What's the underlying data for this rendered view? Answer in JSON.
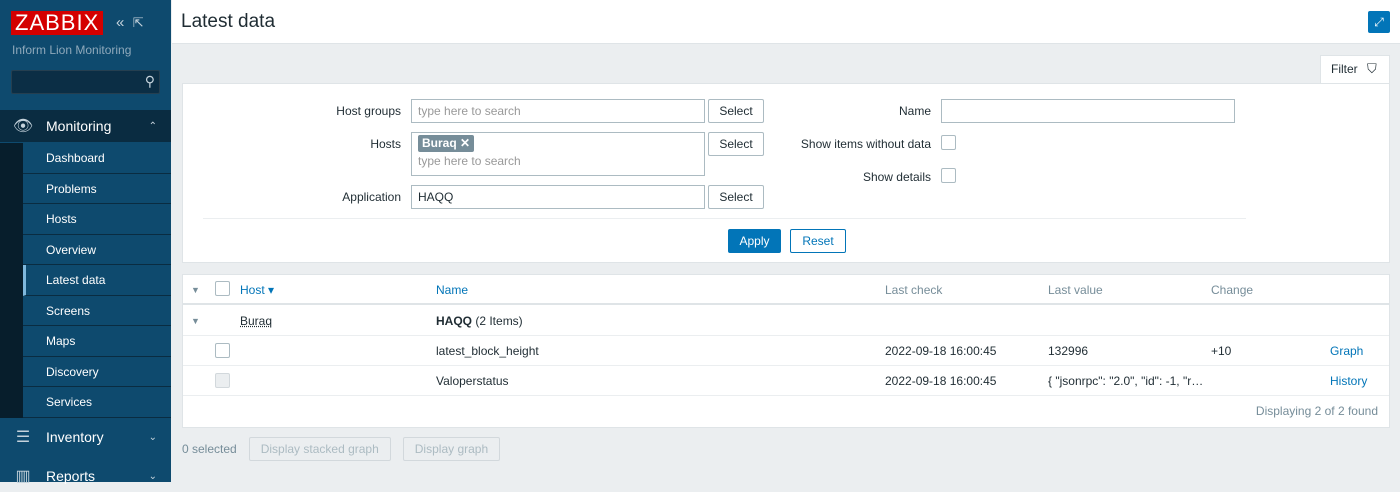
{
  "sidebar": {
    "logo": "ZABBIX",
    "subtitle": "Inform Lion Monitoring",
    "collapse_icon": "«",
    "kiosk_icon": "⇱",
    "search_icon": "🔍",
    "monitoring": {
      "label": "Monitoring",
      "items": [
        "Dashboard",
        "Problems",
        "Hosts",
        "Overview",
        "Latest data",
        "Screens",
        "Maps",
        "Discovery",
        "Services"
      ],
      "active": "Latest data"
    },
    "inventory": "Inventory",
    "reports": "Reports"
  },
  "header": {
    "title": "Latest data",
    "fullscreen_icon": "⤢"
  },
  "filter": {
    "tab_label": "Filter",
    "filter_icon": "⛉",
    "host_groups_label": "Host groups",
    "host_groups_placeholder": "type here to search",
    "hosts_label": "Hosts",
    "hosts_tag": "Buraq",
    "hosts_placeholder": "type here to search",
    "application_label": "Application",
    "application_value": "HAQQ",
    "select_label": "Select",
    "name_label": "Name",
    "name_value": "",
    "show_without_data_label": "Show items without data",
    "show_details_label": "Show details",
    "apply_label": "Apply",
    "reset_label": "Reset"
  },
  "table": {
    "columns": {
      "host": "Host ▾",
      "name": "Name",
      "last_check": "Last check",
      "last_value": "Last value",
      "change": "Change"
    },
    "group": {
      "host": "Buraq",
      "app": "HAQQ",
      "count": "(2 Items)"
    },
    "rows": [
      {
        "name": "latest_block_height",
        "last_check": "2022-09-18 16:00:45",
        "last_value": "132996",
        "change": "+10",
        "action": "Graph"
      },
      {
        "name": "Valoperstatus",
        "last_check": "2022-09-18 16:00:45",
        "last_value": "{ \"jsonrpc\": \"2.0\", \"id\": -1, \"r…",
        "change": "",
        "action": "History"
      }
    ],
    "footer": "Displaying 2 of 2 found"
  },
  "bottom": {
    "selected": "0 selected",
    "stacked_graph": "Display stacked graph",
    "graph": "Display graph"
  }
}
